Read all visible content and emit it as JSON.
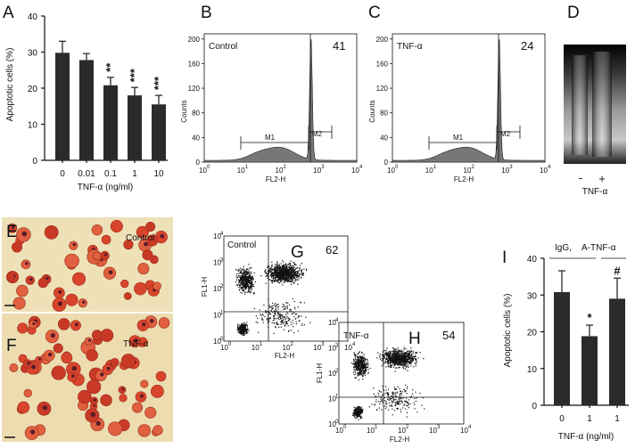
{
  "panel_letters": [
    "A",
    "B",
    "C",
    "D",
    "E",
    "F",
    "G",
    "H",
    "I"
  ],
  "chart_data": [
    {
      "panel": "A",
      "type": "bar",
      "ylabel": "Apoptotic cells (%)",
      "xlabel": "TNF-α (ng/ml)",
      "categories": [
        "0",
        "0.01",
        "0.1",
        "1",
        "10"
      ],
      "values": [
        29.8,
        27.8,
        20.8,
        18.0,
        15.5
      ],
      "errors": [
        3.2,
        1.8,
        2.2,
        2.2,
        2.5
      ],
      "significance": [
        "",
        "",
        "**",
        "***",
        "***"
      ],
      "ylim": [
        0,
        40
      ],
      "yticks": [
        "0",
        "10",
        "20",
        "30",
        "40"
      ]
    },
    {
      "panel": "B",
      "type": "area",
      "title": "Control",
      "value_label": "41",
      "xlabel": "FL2-H",
      "ylabel": "Counts",
      "yticks": [
        "0",
        "40",
        "80",
        "120",
        "160",
        "200"
      ],
      "xticks": [
        "10",
        "10",
        "10",
        "10",
        "10"
      ],
      "xexp": [
        "0",
        "1",
        "2",
        "3",
        "4"
      ],
      "gate_labels": [
        "M1",
        "M2"
      ]
    },
    {
      "panel": "C",
      "type": "area",
      "title": "TNF-α",
      "value_label": "24",
      "xlabel": "FL2-H",
      "ylabel": "Counts",
      "yticks": [
        "0",
        "40",
        "80",
        "120",
        "160",
        "200"
      ],
      "xticks": [
        "10",
        "10",
        "10",
        "10",
        "10"
      ],
      "xexp": [
        "0",
        "1",
        "2",
        "3",
        "4"
      ],
      "gate_labels": [
        "M1",
        "M2"
      ]
    },
    {
      "panel": "D",
      "type": "gel",
      "lane_labels": [
        "-",
        "+"
      ],
      "xlabel": "TNF-α"
    },
    {
      "panel": "G",
      "type": "scatter",
      "title": "Control",
      "value_label": "62",
      "xlabel": "FL2-H",
      "ylabel": "FL1-H",
      "xticks": [
        "10",
        "10",
        "10",
        "10",
        "10"
      ],
      "xexp": [
        "0",
        "1",
        "2",
        "3",
        "4"
      ]
    },
    {
      "panel": "H",
      "type": "scatter",
      "title": "TNF-α",
      "value_label": "54",
      "xlabel": "FL2-H",
      "ylabel": "FL1-H",
      "xticks": [
        "10",
        "10",
        "10",
        "10",
        "10"
      ],
      "xexp": [
        "0",
        "1",
        "2",
        "3",
        "4"
      ]
    },
    {
      "panel": "I",
      "type": "bar",
      "ylabel": "Apoptotic cells (%)",
      "xlabel": "TNF-α (ng/ml)",
      "group_labels": [
        "IgG,",
        "A-TNF-α"
      ],
      "categories": [
        "0",
        "1",
        "1"
      ],
      "values": [
        30.8,
        18.8,
        29.0
      ],
      "errors": [
        5.8,
        3.0,
        5.6
      ],
      "significance": [
        "",
        "*",
        "#"
      ],
      "ylim": [
        0,
        40
      ],
      "yticks": [
        "0",
        "10",
        "20",
        "30",
        "40"
      ]
    }
  ],
  "micrographs": [
    {
      "panel": "E",
      "label": "Control"
    },
    {
      "panel": "F",
      "label": "TNF-α"
    }
  ]
}
